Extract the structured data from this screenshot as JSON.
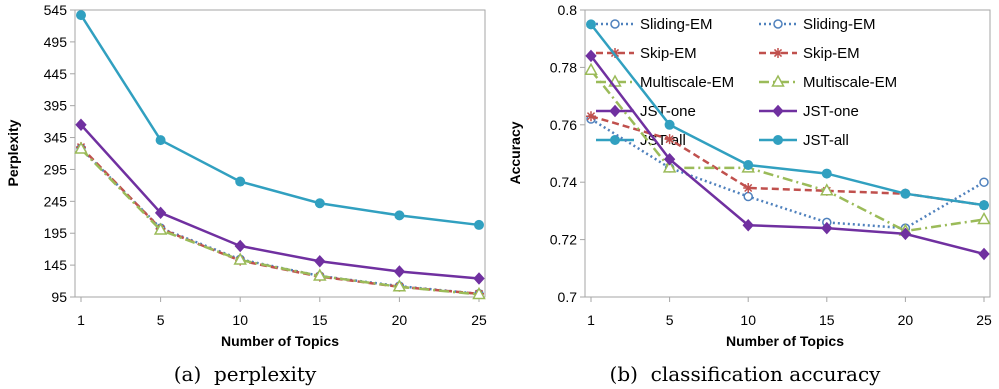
{
  "colors": {
    "Sliding-EM": "#4f81bd",
    "Skip-EM": "#c0504d",
    "Multiscale-EM": "#9bbb59",
    "JST-one": "#7030a0",
    "JST-all": "#31a0c0"
  },
  "chart_data": [
    {
      "type": "line",
      "caption": "(a)  perplexity",
      "xlabel": "Number of Topics",
      "ylabel": "Perplexity",
      "x": [
        1,
        5,
        10,
        15,
        20,
        25
      ],
      "ylim": [
        95,
        545
      ],
      "yticks": [
        95,
        145,
        195,
        245,
        295,
        345,
        395,
        445,
        495,
        545
      ],
      "grid": false,
      "legend": "top-right",
      "series": [
        {
          "name": "Sliding-EM",
          "values": [
            328,
            203,
            154,
            128,
            112,
            100
          ]
        },
        {
          "name": "Skip-EM",
          "values": [
            330,
            202,
            152,
            127,
            111,
            100
          ]
        },
        {
          "name": "Multiscale-EM",
          "values": [
            327,
            200,
            153,
            128,
            111,
            99
          ]
        },
        {
          "name": "JST-one",
          "values": [
            365,
            227,
            175,
            151,
            135,
            124
          ]
        },
        {
          "name": "JST-all",
          "values": [
            537,
            341,
            276,
            242,
            223,
            208
          ]
        }
      ]
    },
    {
      "type": "line",
      "caption": "(b)  classification accuracy",
      "xlabel": "Number of Topics",
      "ylabel": "Accuracy",
      "x": [
        1,
        5,
        10,
        15,
        20,
        25
      ],
      "ylim": [
        0.7,
        0.8
      ],
      "yticks": [
        "0.7",
        "0.72",
        "0.74",
        "0.76",
        "0.78",
        "0.8"
      ],
      "grid": false,
      "legend": "top-right",
      "series": [
        {
          "name": "Sliding-EM",
          "values": [
            0.762,
            0.745,
            0.735,
            0.726,
            0.724,
            0.74
          ]
        },
        {
          "name": "Skip-EM",
          "values": [
            0.763,
            0.755,
            0.738,
            0.737,
            0.736,
            0.732
          ]
        },
        {
          "name": "Multiscale-EM",
          "values": [
            0.779,
            0.745,
            0.745,
            0.737,
            0.723,
            0.727
          ]
        },
        {
          "name": "JST-one",
          "values": [
            0.784,
            0.748,
            0.725,
            0.724,
            0.722,
            0.715
          ]
        },
        {
          "name": "JST-all",
          "values": [
            0.795,
            0.76,
            0.746,
            0.743,
            0.736,
            0.732
          ]
        }
      ]
    }
  ]
}
